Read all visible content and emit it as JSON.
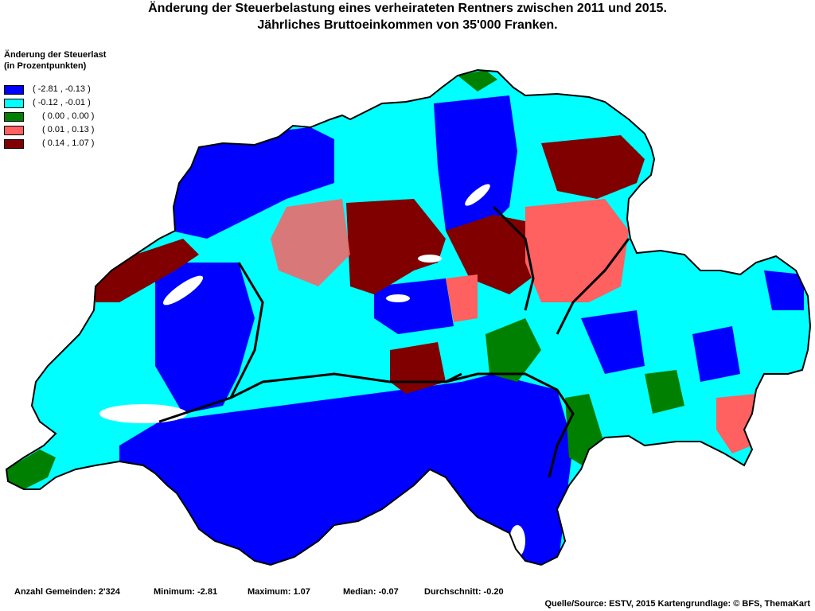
{
  "title_line1": "Änderung der Steuerbelastung eines verheirateten Rentners zwischen 2011 und 2015.",
  "title_line2": "Jährliches Bruttoeinkommen von 35'000 Franken.",
  "legend": {
    "title_line1": "Änderung der Steuerlast",
    "title_line2": "(in Prozentpunkten)",
    "items": [
      {
        "label": "( -2.81 , -0.13 )",
        "color": "#0000ff"
      },
      {
        "label": "( -0.12 , -0.01 )",
        "color": "#00ffff"
      },
      {
        "label": "( 0.00 , 0.00 )",
        "color": "#008000"
      },
      {
        "label": "( 0.01 , 0.13 )",
        "color": "#ff6060"
      },
      {
        "label": "( 0.14 , 1.07 )",
        "color": "#800000"
      }
    ]
  },
  "stats": {
    "count": "Anzahl Gemeinden: 2'324",
    "minimum": "Minimum: -2.81",
    "maximum": "Maximum: 1.07",
    "median": "Median: -0.07",
    "average": "Durchschnitt: -0.20"
  },
  "source": "Quelle/Source: ESTV, 2015 Kartengrundlage: © BFS, ThemaKart"
}
